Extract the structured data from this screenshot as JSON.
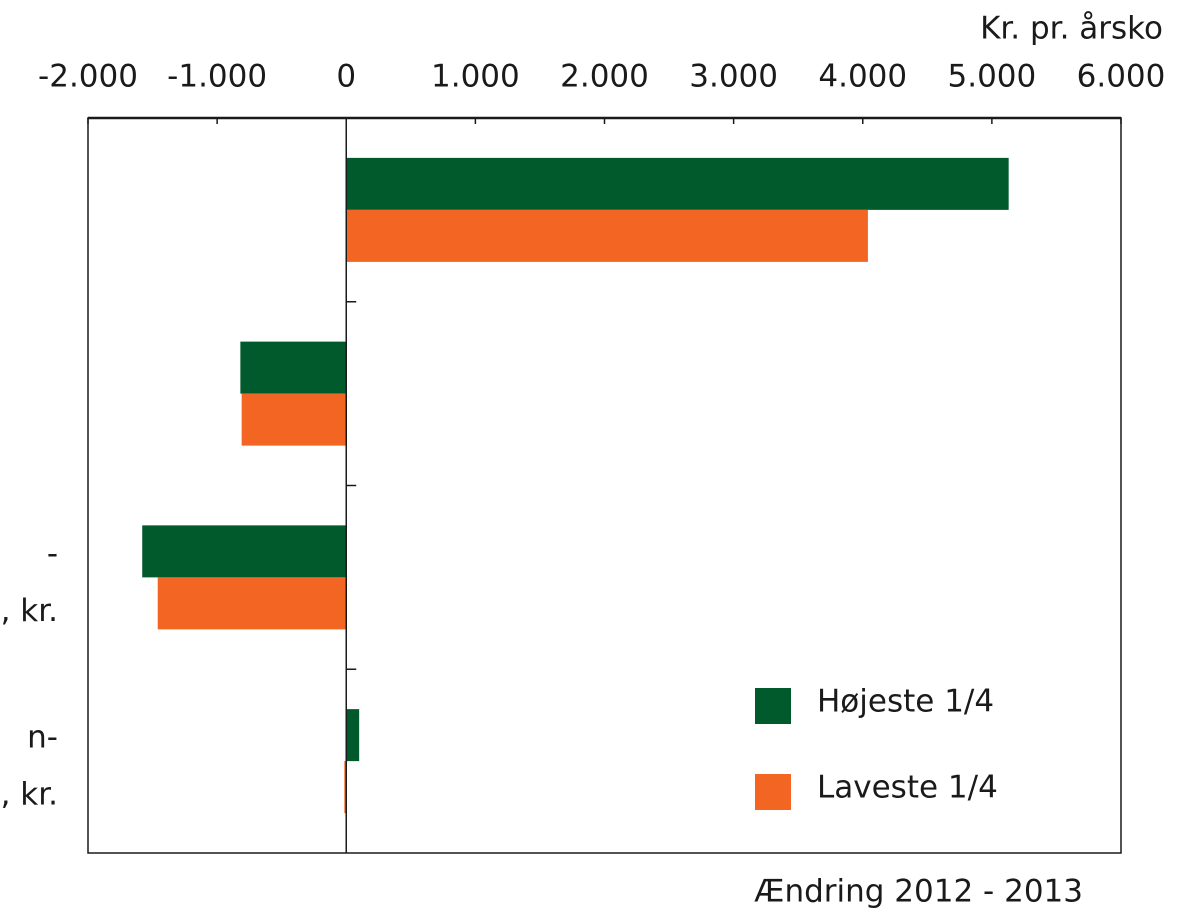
{
  "chart_data": {
    "type": "barh",
    "y_axis_label": "Kr. pr. årsko",
    "x_axis_label": "Ændring 2012 - 2013",
    "categories": [
      null,
      null,
      [
        "-",
        ", kr."
      ],
      [
        "n-",
        ", kr."
      ]
    ],
    "series": [
      {
        "name": "Højeste 1/4",
        "color": "#005a2b",
        "values": [
          5130,
          -820,
          -1580,
          100
        ]
      },
      {
        "name": "Laveste 1/4",
        "color": "#f26522",
        "values": [
          4040,
          -810,
          -1460,
          -15
        ]
      }
    ],
    "xlim": [
      -2000,
      6000
    ],
    "xticks": [
      {
        "value": -2000,
        "label": "-2.000"
      },
      {
        "value": -1000,
        "label": "-1.000"
      },
      0,
      {
        "value": 1000,
        "label": "1.000"
      },
      {
        "value": 2000,
        "label": "2.000"
      },
      {
        "value": 3000,
        "label": "3.000"
      },
      {
        "value": 4000,
        "label": "4.000"
      },
      {
        "value": 5000,
        "label": "5.000"
      },
      {
        "value": 6000,
        "label": "6.000"
      }
    ],
    "legend": "lower right"
  }
}
